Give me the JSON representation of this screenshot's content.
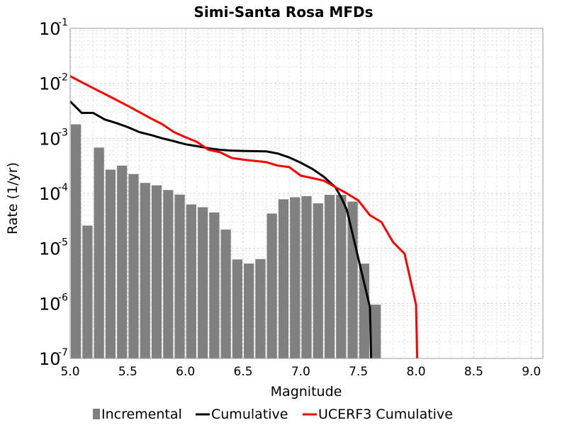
{
  "chart_data": {
    "type": "bar",
    "title": "Simi-Santa Rosa MFDs",
    "xlabel": "Magnitude",
    "ylabel": "Rate (1/yr)",
    "xlim": [
      5.0,
      9.1
    ],
    "ylim": [
      1e-07,
      0.1
    ],
    "yscale": "log",
    "grid": true,
    "legend_position": "bottom",
    "x_ticks": [
      "5.0",
      "5.5",
      "6.0",
      "6.5",
      "7.0",
      "7.5",
      "8.0",
      "8.5",
      "9.0"
    ],
    "y_ticks": [
      {
        "base": "10",
        "exp": "-1"
      },
      {
        "base": "10",
        "exp": "-2"
      },
      {
        "base": "10",
        "exp": "-3"
      },
      {
        "base": "10",
        "exp": "-4"
      },
      {
        "base": "10",
        "exp": "-5"
      },
      {
        "base": "10",
        "exp": "-6"
      },
      {
        "base": "10",
        "exp": "-7"
      }
    ],
    "series": [
      {
        "name": "Incremental",
        "type": "bar",
        "color": "#808080",
        "x": [
          5.05,
          5.15,
          5.25,
          5.35,
          5.45,
          5.55,
          5.65,
          5.75,
          5.85,
          5.95,
          6.05,
          6.15,
          6.25,
          6.35,
          6.45,
          6.55,
          6.65,
          6.75,
          6.85,
          6.95,
          7.05,
          7.15,
          7.25,
          7.35,
          7.45,
          7.55,
          7.65
        ],
        "y": [
          0.0018,
          2.6e-05,
          0.00068,
          0.00027,
          0.00032,
          0.000225,
          0.000155,
          0.00014,
          0.000115,
          9.5e-05,
          6.3e-05,
          5.6e-05,
          4.5e-05,
          2.2e-05,
          6.3e-06,
          5.3e-06,
          6.4e-06,
          4.3e-05,
          7.8e-05,
          8.5e-05,
          8.9e-05,
          6.6e-05,
          9.4e-05,
          9.4e-05,
          7.1e-05,
          5.3e-06,
          9.5e-07
        ]
      },
      {
        "name": "Cumulative",
        "type": "line",
        "color": "#000000",
        "x": [
          5.0,
          5.1,
          5.2,
          5.3,
          5.4,
          5.5,
          5.6,
          5.7,
          5.8,
          5.9,
          6.0,
          6.1,
          6.2,
          6.3,
          6.4,
          6.5,
          6.6,
          6.7,
          6.8,
          6.9,
          7.0,
          7.1,
          7.2,
          7.3,
          7.35,
          7.4,
          7.5,
          7.6,
          7.61
        ],
        "y": [
          0.0047,
          0.0029,
          0.0029,
          0.0022,
          0.0019,
          0.0016,
          0.0013,
          0.00115,
          0.001,
          0.00089,
          0.00078,
          0.00072,
          0.00066,
          0.00062,
          0.0006,
          0.00059,
          0.000585,
          0.00058,
          0.00053,
          0.00045,
          0.00036,
          0.00028,
          0.0002,
          0.00013,
          8.5e-05,
          5e-05,
          6.5e-06,
          8.5e-07,
          1e-07
        ]
      },
      {
        "name": "UCERF3 Cumulative",
        "type": "line",
        "color": "#ff0000",
        "x": [
          5.0,
          5.1,
          5.2,
          5.3,
          5.4,
          5.5,
          5.6,
          5.7,
          5.8,
          5.9,
          6.0,
          6.1,
          6.2,
          6.3,
          6.4,
          6.5,
          6.6,
          6.7,
          6.8,
          6.9,
          7.0,
          7.1,
          7.2,
          7.3,
          7.4,
          7.5,
          7.6,
          7.7,
          7.8,
          7.9,
          8.0,
          8.01
        ],
        "y": [
          0.0135,
          0.0105,
          0.0082,
          0.0064,
          0.005,
          0.0039,
          0.003,
          0.0023,
          0.0018,
          0.0013,
          0.00105,
          0.00086,
          0.00062,
          0.00056,
          0.00044,
          0.00041,
          0.00039,
          0.00037,
          0.00032,
          0.0003,
          0.00021,
          0.00019,
          0.00017,
          0.00013,
          0.0001,
          7.4e-05,
          4e-05,
          3e-05,
          1.3e-05,
          8e-06,
          9.5e-07,
          1e-07
        ]
      }
    ]
  }
}
